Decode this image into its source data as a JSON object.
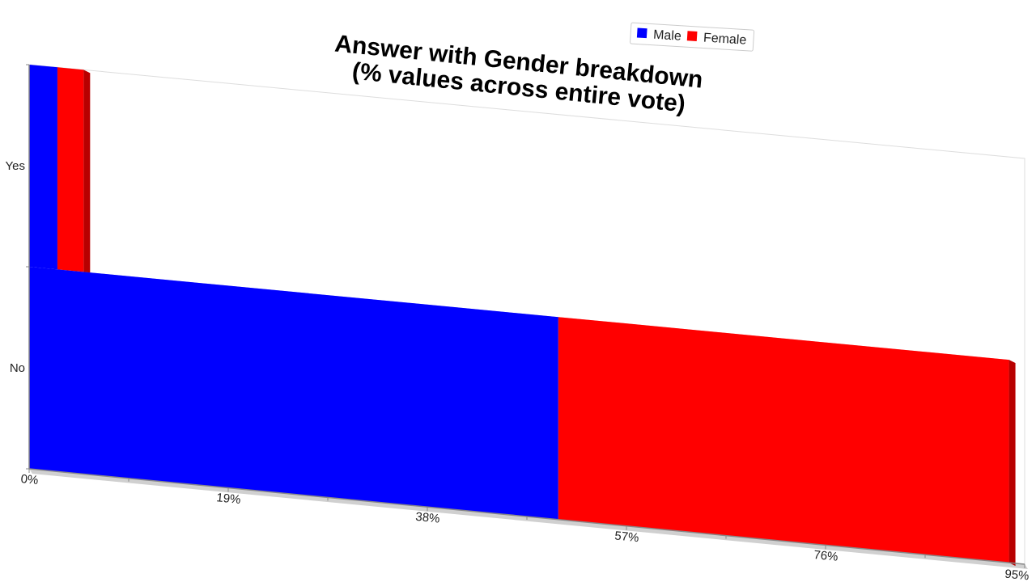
{
  "chart_data": {
    "type": "bar",
    "orientation": "horizontal",
    "stacked": true,
    "title": [
      "Answer with Gender breakdown",
      "(% values across entire vote)"
    ],
    "categories": [
      "Yes",
      "No"
    ],
    "series": [
      {
        "name": "Male",
        "color": "#0000ff",
        "values": [
          2.7,
          50.5
        ]
      },
      {
        "name": "Female",
        "color": "#ff0000",
        "values": [
          2.5,
          43.0
        ]
      }
    ],
    "xlim": [
      0,
      95
    ],
    "x_ticks": [
      "0%",
      "19%",
      "38%",
      "57%",
      "76%",
      "95%"
    ],
    "legend_position": "top-right",
    "grid": false,
    "perspective": "3d"
  }
}
